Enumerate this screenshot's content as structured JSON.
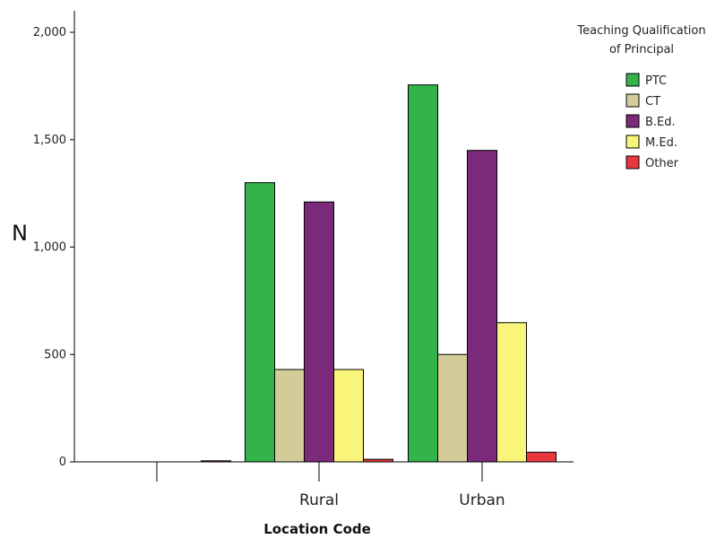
{
  "chart_data": {
    "type": "bar",
    "xlabel": "Location Code",
    "ylabel": "N",
    "ylim": [
      0,
      2000
    ],
    "yticks": [
      0,
      500,
      1000,
      1500,
      2000
    ],
    "ytick_labels": [
      "0",
      "500",
      "1,000",
      "1,500",
      "2,000"
    ],
    "categories": [
      "",
      "Rural",
      "Urban"
    ],
    "legend_title": [
      "Teaching Qualification",
      "of Principal"
    ],
    "legend_position": "top-right",
    "grid": false,
    "series": [
      {
        "name": "PTC",
        "color": "#33b34a",
        "values": [
          0,
          1300,
          1755
        ]
      },
      {
        "name": "CT",
        "color": "#d4cc98",
        "values": [
          0,
          430,
          500
        ]
      },
      {
        "name": "B.Ed.",
        "color": "#7b2a7b",
        "values": [
          0,
          1210,
          1450
        ]
      },
      {
        "name": "M.Ed.",
        "color": "#f8f57a",
        "values": [
          0,
          430,
          648
        ]
      },
      {
        "name": "Other",
        "color": "#e8373c",
        "values": [
          5,
          12,
          45
        ]
      }
    ]
  }
}
